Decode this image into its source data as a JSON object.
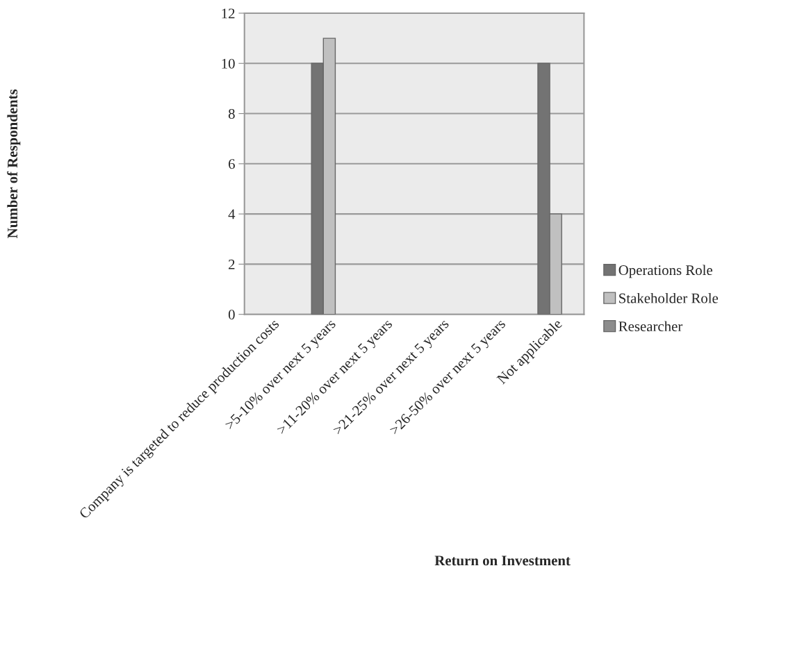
{
  "chart_data": {
    "type": "bar",
    "xlabel": "Return on Investment",
    "ylabel": "Number of Respondents",
    "categories": [
      "Company is targeted to reduce production costs",
      ">5-10% over next 5 years",
      ">11-20% over next 5 years",
      ">21-25% over next 5 years",
      ">26-50% over next 5 years",
      "Not applicable"
    ],
    "series": [
      {
        "name": "Operations Role",
        "color": "#737373",
        "values": [
          0,
          10,
          0,
          0,
          0,
          10
        ]
      },
      {
        "name": "Stakeholder Role",
        "color": "#c0c0c0",
        "values": [
          0,
          11,
          0,
          0,
          0,
          4
        ]
      },
      {
        "name": "Researcher",
        "color": "#8c8c8c",
        "values": [
          0,
          0,
          0,
          0,
          0,
          0
        ]
      }
    ],
    "ylim": [
      0,
      12
    ],
    "yticks": [
      0,
      2,
      4,
      6,
      8,
      10,
      12
    ],
    "grid": "y",
    "legend": "right"
  }
}
